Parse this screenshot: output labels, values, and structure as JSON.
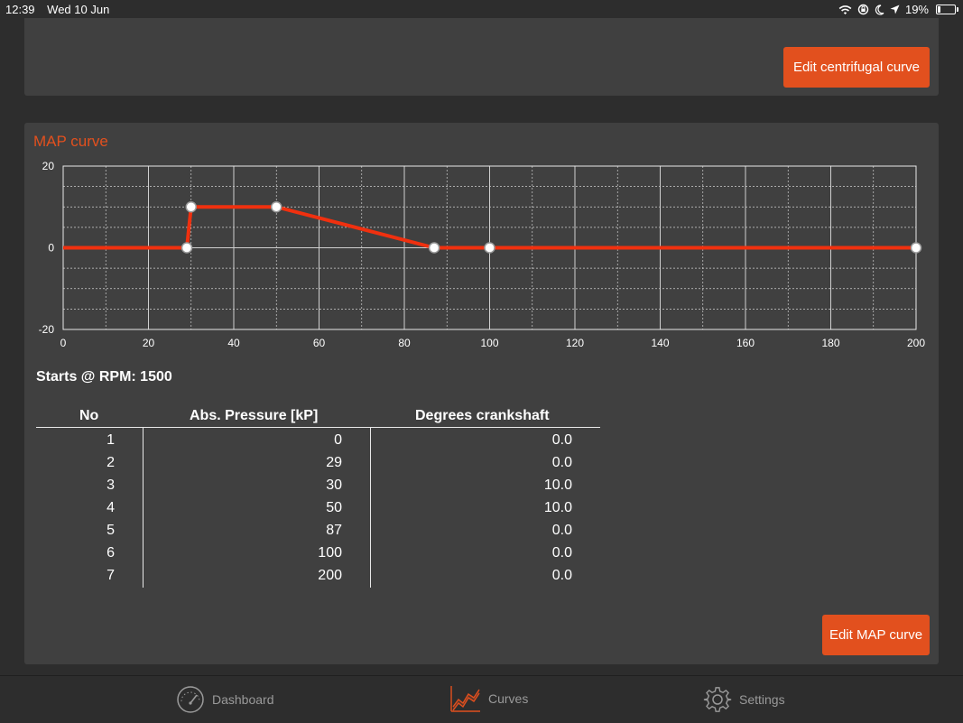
{
  "status_bar": {
    "time": "12:39",
    "date": "Wed 10 Jun",
    "battery": "19%",
    "battery_level": 0.19,
    "icons": [
      "wifi-icon",
      "lock-rotation-icon",
      "moon-icon",
      "location-arrow-icon",
      "battery-icon"
    ]
  },
  "centrifugal": {
    "edit_label": "Edit centrifugal curve"
  },
  "map": {
    "title": "MAP curve",
    "starts_label": "Starts @ RPM: 1500",
    "edit_label": "Edit MAP curve",
    "table": {
      "headers": [
        "No",
        "Abs. Pressure [kP]",
        "Degrees crankshaft"
      ],
      "rows": [
        {
          "no": "1",
          "pressure": "0",
          "degrees": "0.0"
        },
        {
          "no": "2",
          "pressure": "29",
          "degrees": "0.0"
        },
        {
          "no": "3",
          "pressure": "30",
          "degrees": "10.0"
        },
        {
          "no": "4",
          "pressure": "50",
          "degrees": "10.0"
        },
        {
          "no": "5",
          "pressure": "87",
          "degrees": "0.0"
        },
        {
          "no": "6",
          "pressure": "100",
          "degrees": "0.0"
        },
        {
          "no": "7",
          "pressure": "200",
          "degrees": "0.0"
        }
      ]
    }
  },
  "chart_data": {
    "type": "line",
    "title": "",
    "xlabel": "",
    "ylabel": "",
    "xlim": [
      0,
      200
    ],
    "ylim": [
      -20,
      20
    ],
    "x_ticks": [
      "0",
      "20",
      "40",
      "60",
      "80",
      "100",
      "120",
      "140",
      "160",
      "180",
      "200"
    ],
    "y_ticks": [
      "20",
      "0",
      "-20"
    ],
    "grid": true,
    "line_color": "#f0300f",
    "series": [
      {
        "x": [
          0,
          29,
          30,
          50,
          87,
          100,
          200
        ],
        "y": [
          0,
          0,
          10,
          10,
          0,
          0,
          0
        ],
        "markers": [
          false,
          true,
          true,
          true,
          true,
          true,
          true
        ]
      }
    ]
  },
  "tabbar": {
    "tabs": [
      {
        "label": "Dashboard",
        "icon": "speedometer-icon"
      },
      {
        "label": "Curves",
        "icon": "curves-icon"
      },
      {
        "label": "Settings",
        "icon": "gear-icon"
      }
    ],
    "active_color": "#e2501e"
  }
}
